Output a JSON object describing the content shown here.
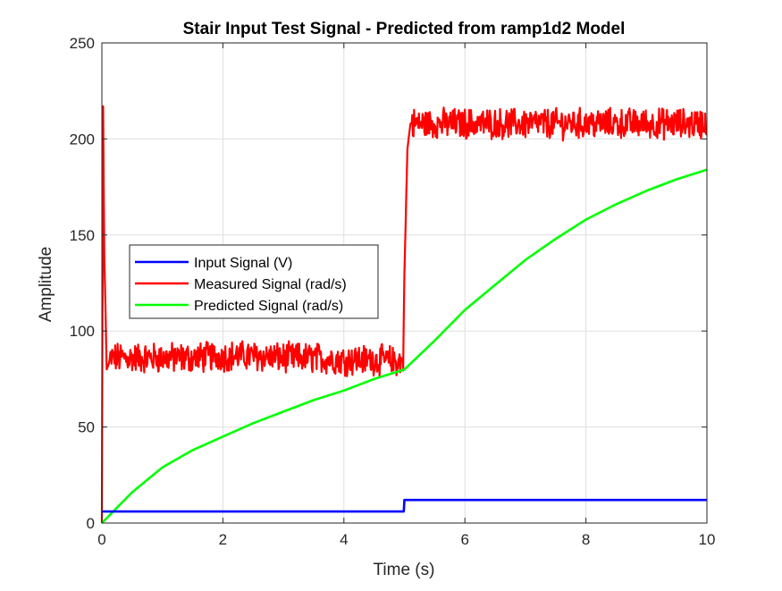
{
  "chart_data": {
    "type": "line",
    "title": "Stair Input Test Signal - Predicted from ramp1d2 Model",
    "xlabel": "Time (s)",
    "ylabel": "Amplitude",
    "xlim": [
      0,
      10
    ],
    "ylim": [
      0,
      250
    ],
    "xticks": [
      0,
      2,
      4,
      6,
      8,
      10
    ],
    "yticks": [
      0,
      50,
      100,
      150,
      200,
      250
    ],
    "grid": true,
    "legend_position": "center-left",
    "series": [
      {
        "name": "Input Signal (V)",
        "color": "#0000FF",
        "x": [
          0,
          4.99,
          5.0,
          10
        ],
        "y": [
          6,
          6,
          12,
          12
        ]
      },
      {
        "name": "Measured Signal (rad/s)",
        "color": "#FF0000",
        "noise": true,
        "x": [
          0,
          0.02,
          0.04,
          0.08,
          0.15,
          0.5,
          1.0,
          1.5,
          2.0,
          2.5,
          3.0,
          3.5,
          4.0,
          4.5,
          4.98,
          5.0,
          5.05,
          5.1,
          6.0,
          7.0,
          8.0,
          9.0,
          10.0
        ],
        "y": [
          0,
          217,
          140,
          80,
          86,
          86,
          86,
          86,
          87,
          87,
          86,
          86,
          85,
          85,
          84,
          130,
          195,
          208,
          208,
          208,
          208,
          208,
          208
        ]
      },
      {
        "name": "Predicted Signal (rad/s)",
        "color": "#00FF00",
        "x": [
          0,
          0.5,
          1,
          1.5,
          2,
          2.5,
          3,
          3.5,
          4,
          4.5,
          5,
          5.5,
          6,
          6.5,
          7,
          7.5,
          8,
          8.5,
          9,
          9.5,
          10
        ],
        "y": [
          0,
          16,
          29,
          38,
          45,
          52,
          58,
          64,
          69,
          75,
          80,
          95,
          111,
          124,
          137,
          148,
          158,
          166,
          173,
          179,
          184
        ]
      }
    ]
  }
}
